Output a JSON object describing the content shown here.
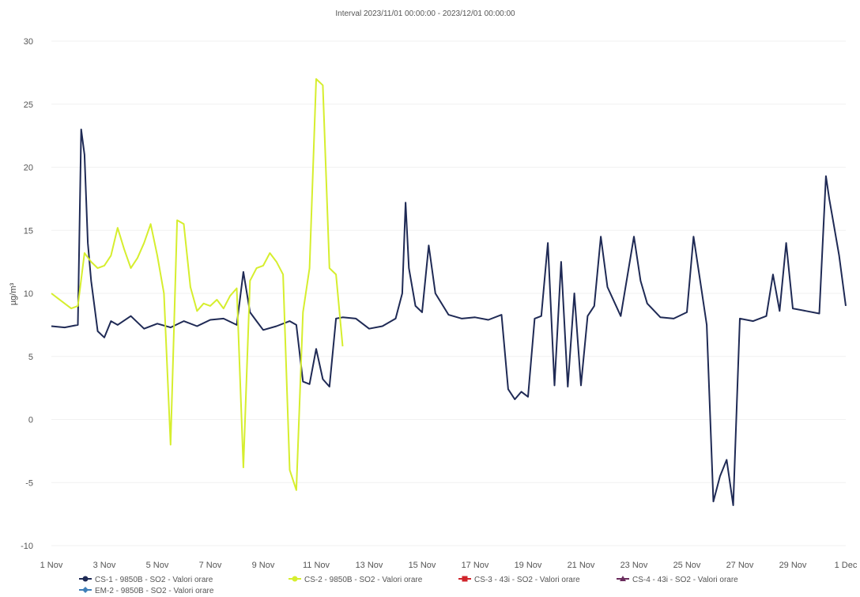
{
  "chart_data": {
    "type": "line",
    "title": "Interval 2023/11/01 00:00:00 - 2023/12/01 00:00:00",
    "ylabel": "µg/m³",
    "xlabel": "",
    "ylim": [
      -10,
      30
    ],
    "yticks": [
      "30",
      "25",
      "20",
      "15",
      "10",
      "5",
      "0",
      "-5",
      "-10"
    ],
    "xlim": [
      "2023-11-01",
      "2023-12-01"
    ],
    "xticks": [
      "1 Nov",
      "3 Nov",
      "5 Nov",
      "7 Nov",
      "9 Nov",
      "11 Nov",
      "13 Nov",
      "15 Nov",
      "17 Nov",
      "19 Nov",
      "21 Nov",
      "23 Nov",
      "25 Nov",
      "27 Nov",
      "29 Nov",
      "1 Dec"
    ],
    "grid": true,
    "legend_position": "bottom",
    "series": [
      {
        "name": "CS-1 - 9850B - SO2 - Valori orare",
        "color": "#1f2a55",
        "marker": "circle",
        "points": [
          [
            "2023-11-01 00:00",
            7.4
          ],
          [
            "2023-11-01 12:00",
            7.3
          ],
          [
            "2023-11-02 00:00",
            7.5
          ],
          [
            "2023-11-02 03:00",
            23.0
          ],
          [
            "2023-11-02 06:00",
            21.0
          ],
          [
            "2023-11-02 09:00",
            14.0
          ],
          [
            "2023-11-02 12:00",
            11.0
          ],
          [
            "2023-11-02 18:00",
            7.0
          ],
          [
            "2023-11-03 00:00",
            6.5
          ],
          [
            "2023-11-03 06:00",
            7.8
          ],
          [
            "2023-11-03 12:00",
            7.5
          ],
          [
            "2023-11-04 00:00",
            8.2
          ],
          [
            "2023-11-04 12:00",
            7.2
          ],
          [
            "2023-11-05 00:00",
            7.6
          ],
          [
            "2023-11-05 12:00",
            7.3
          ],
          [
            "2023-11-06 00:00",
            7.8
          ],
          [
            "2023-11-06 12:00",
            7.4
          ],
          [
            "2023-11-07 00:00",
            7.9
          ],
          [
            "2023-11-07 12:00",
            8.0
          ],
          [
            "2023-11-08 00:00",
            7.5
          ],
          [
            "2023-11-08 06:00",
            11.7
          ],
          [
            "2023-11-08 12:00",
            8.5
          ],
          [
            "2023-11-08 18:00",
            7.8
          ],
          [
            "2023-11-09 00:00",
            7.1
          ],
          [
            "2023-11-09 12:00",
            7.4
          ],
          [
            "2023-11-10 00:00",
            7.8
          ],
          [
            "2023-11-10 06:00",
            7.5
          ],
          [
            "2023-11-10 12:00",
            3.0
          ],
          [
            "2023-11-10 18:00",
            2.8
          ],
          [
            "2023-11-11 00:00",
            5.6
          ],
          [
            "2023-11-11 06:00",
            3.2
          ],
          [
            "2023-11-11 12:00",
            2.6
          ],
          [
            "2023-11-11 18:00",
            8.0
          ],
          [
            "2023-11-12 00:00",
            8.1
          ],
          [
            "2023-11-12 12:00",
            8.0
          ],
          [
            "2023-11-13 00:00",
            7.2
          ],
          [
            "2023-11-13 12:00",
            7.4
          ],
          [
            "2023-11-14 00:00",
            8.0
          ],
          [
            "2023-11-14 06:00",
            10.0
          ],
          [
            "2023-11-14 09:00",
            17.2
          ],
          [
            "2023-11-14 12:00",
            12.0
          ],
          [
            "2023-11-14 18:00",
            9.0
          ],
          [
            "2023-11-15 00:00",
            8.5
          ],
          [
            "2023-11-15 06:00",
            13.8
          ],
          [
            "2023-11-15 12:00",
            10.0
          ],
          [
            "2023-11-16 00:00",
            8.3
          ],
          [
            "2023-11-16 12:00",
            8.0
          ],
          [
            "2023-11-17 00:00",
            8.1
          ],
          [
            "2023-11-17 12:00",
            7.9
          ],
          [
            "2023-11-18 00:00",
            8.3
          ],
          [
            "2023-11-18 06:00",
            2.4
          ],
          [
            "2023-11-18 12:00",
            1.6
          ],
          [
            "2023-11-18 18:00",
            2.2
          ],
          [
            "2023-11-19 00:00",
            1.8
          ],
          [
            "2023-11-19 06:00",
            8.0
          ],
          [
            "2023-11-19 12:00",
            8.2
          ],
          [
            "2023-11-19 18:00",
            14.0
          ],
          [
            "2023-11-20 00:00",
            2.7
          ],
          [
            "2023-11-20 06:00",
            12.5
          ],
          [
            "2023-11-20 12:00",
            2.6
          ],
          [
            "2023-11-20 18:00",
            10.0
          ],
          [
            "2023-11-21 00:00",
            2.7
          ],
          [
            "2023-11-21 06:00",
            8.2
          ],
          [
            "2023-11-21 12:00",
            9.0
          ],
          [
            "2023-11-21 18:00",
            14.5
          ],
          [
            "2023-11-22 00:00",
            10.5
          ],
          [
            "2023-11-22 12:00",
            8.2
          ],
          [
            "2023-11-23 00:00",
            14.5
          ],
          [
            "2023-11-23 06:00",
            11.0
          ],
          [
            "2023-11-23 12:00",
            9.2
          ],
          [
            "2023-11-24 00:00",
            8.1
          ],
          [
            "2023-11-24 12:00",
            8.0
          ],
          [
            "2023-11-25 00:00",
            8.5
          ],
          [
            "2023-11-25 06:00",
            14.5
          ],
          [
            "2023-11-25 12:00",
            11.0
          ],
          [
            "2023-11-25 18:00",
            7.5
          ],
          [
            "2023-11-26 00:00",
            -6.5
          ],
          [
            "2023-11-26 06:00",
            -4.5
          ],
          [
            "2023-11-26 12:00",
            -3.2
          ],
          [
            "2023-11-26 18:00",
            -6.8
          ],
          [
            "2023-11-27 00:00",
            8.0
          ],
          [
            "2023-11-27 12:00",
            7.8
          ],
          [
            "2023-11-28 00:00",
            8.2
          ],
          [
            "2023-11-28 06:00",
            11.5
          ],
          [
            "2023-11-28 12:00",
            8.6
          ],
          [
            "2023-11-28 18:00",
            14.0
          ],
          [
            "2023-11-29 00:00",
            8.8
          ],
          [
            "2023-11-29 12:00",
            8.6
          ],
          [
            "2023-11-30 00:00",
            8.4
          ],
          [
            "2023-11-30 06:00",
            19.3
          ],
          [
            "2023-11-30 09:00",
            17.5
          ],
          [
            "2023-11-30 12:00",
            16.0
          ],
          [
            "2023-11-30 18:00",
            13.0
          ],
          [
            "2023-12-01 00:00",
            9.0
          ]
        ]
      },
      {
        "name": "CS-2 - 9850B - SO2 - Valori orare",
        "color": "#d6ee2e",
        "marker": "circle",
        "points": [
          [
            "2023-11-01 00:00",
            10.0
          ],
          [
            "2023-11-01 06:00",
            9.6
          ],
          [
            "2023-11-01 12:00",
            9.2
          ],
          [
            "2023-11-01 18:00",
            8.8
          ],
          [
            "2023-11-02 00:00",
            9.0
          ],
          [
            "2023-11-02 06:00",
            13.2
          ],
          [
            "2023-11-02 12:00",
            12.5
          ],
          [
            "2023-11-02 18:00",
            12.0
          ],
          [
            "2023-11-03 00:00",
            12.2
          ],
          [
            "2023-11-03 06:00",
            13.0
          ],
          [
            "2023-11-03 12:00",
            15.2
          ],
          [
            "2023-11-03 18:00",
            13.5
          ],
          [
            "2023-11-04 00:00",
            12.0
          ],
          [
            "2023-11-04 06:00",
            12.8
          ],
          [
            "2023-11-04 12:00",
            14.0
          ],
          [
            "2023-11-04 18:00",
            15.5
          ],
          [
            "2023-11-05 00:00",
            13.0
          ],
          [
            "2023-11-05 06:00",
            10.0
          ],
          [
            "2023-11-05 12:00",
            -2.0
          ],
          [
            "2023-11-05 18:00",
            15.8
          ],
          [
            "2023-11-06 00:00",
            15.5
          ],
          [
            "2023-11-06 06:00",
            10.5
          ],
          [
            "2023-11-06 12:00",
            8.6
          ],
          [
            "2023-11-06 18:00",
            9.2
          ],
          [
            "2023-11-07 00:00",
            9.0
          ],
          [
            "2023-11-07 06:00",
            9.5
          ],
          [
            "2023-11-07 12:00",
            8.8
          ],
          [
            "2023-11-07 18:00",
            9.8
          ],
          [
            "2023-11-08 00:00",
            10.4
          ],
          [
            "2023-11-08 06:00",
            -3.8
          ],
          [
            "2023-11-08 12:00",
            11.0
          ],
          [
            "2023-11-08 18:00",
            12.0
          ],
          [
            "2023-11-09 00:00",
            12.2
          ],
          [
            "2023-11-09 06:00",
            13.2
          ],
          [
            "2023-11-09 12:00",
            12.5
          ],
          [
            "2023-11-09 18:00",
            11.5
          ],
          [
            "2023-11-10 00:00",
            -4.0
          ],
          [
            "2023-11-10 06:00",
            -5.6
          ],
          [
            "2023-11-10 12:00",
            8.5
          ],
          [
            "2023-11-10 18:00",
            12.0
          ],
          [
            "2023-11-11 00:00",
            27.0
          ],
          [
            "2023-11-11 06:00",
            26.5
          ],
          [
            "2023-11-11 12:00",
            12.0
          ],
          [
            "2023-11-11 18:00",
            11.5
          ],
          [
            "2023-11-12 00:00",
            5.8
          ]
        ]
      },
      {
        "name": "CS-3 - 43i - SO2 - Valori orare",
        "color": "#d0242b",
        "marker": "square",
        "points": []
      },
      {
        "name": "CS-4 - 43i - SO2 - Valori orare",
        "color": "#6a2c5d",
        "marker": "triangle",
        "points": []
      },
      {
        "name": "EM-2 - 9850B - SO2 - Valori orare",
        "color": "#3f7fb8",
        "marker": "diamond",
        "points": []
      }
    ]
  }
}
